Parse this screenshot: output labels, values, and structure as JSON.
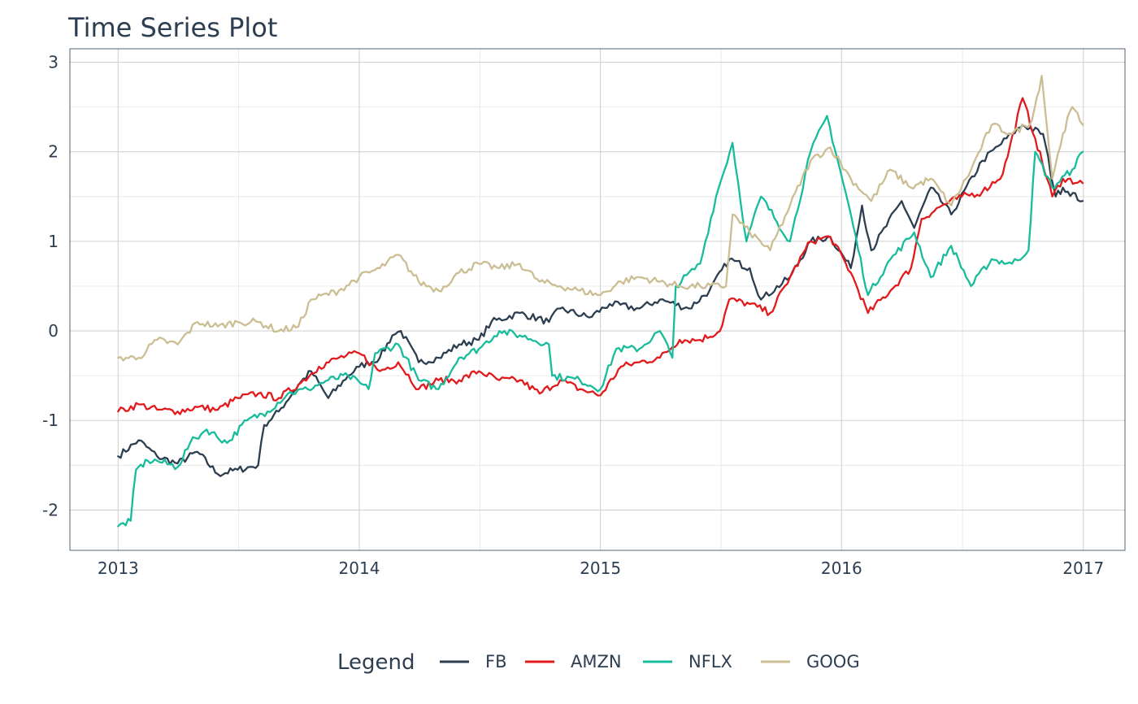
{
  "chart_data": {
    "type": "line",
    "title": "Time Series Plot",
    "xlabel": "",
    "ylabel": "",
    "x_ticks": [
      "2013",
      "2014",
      "2015",
      "2016",
      "2017"
    ],
    "y_ticks": [
      "-2",
      "-1",
      "0",
      "1",
      "2",
      "3"
    ],
    "xlim": [
      "2012-10-20",
      "2017-03-05"
    ],
    "ylim": [
      -2.45,
      3.15
    ],
    "grid": true,
    "legend": {
      "title": "Legend",
      "position": "bottom"
    },
    "series": [
      {
        "name": "FB",
        "color": "#2c3e50",
        "points": [
          [
            "2013-01-01",
            -1.4
          ],
          [
            "2013-02-01",
            -1.22
          ],
          [
            "2013-03-01",
            -1.4
          ],
          [
            "2013-04-01",
            -1.48
          ],
          [
            "2013-05-01",
            -1.35
          ],
          [
            "2013-06-01",
            -1.6
          ],
          [
            "2013-07-01",
            -1.55
          ],
          [
            "2013-08-01",
            -1.5
          ],
          [
            "2013-08-10",
            -1.05
          ],
          [
            "2013-09-01",
            -0.9
          ],
          [
            "2013-10-01",
            -0.6
          ],
          [
            "2013-10-20",
            -0.45
          ],
          [
            "2013-11-15",
            -0.75
          ],
          [
            "2013-12-15",
            -0.5
          ],
          [
            "2014-01-01",
            -0.4
          ],
          [
            "2014-02-01",
            -0.3
          ],
          [
            "2014-02-20",
            -0.05
          ],
          [
            "2014-03-05",
            0.0
          ],
          [
            "2014-04-01",
            -0.35
          ],
          [
            "2014-05-01",
            -0.3
          ],
          [
            "2014-06-01",
            -0.15
          ],
          [
            "2014-07-01",
            -0.1
          ],
          [
            "2014-07-20",
            0.1
          ],
          [
            "2014-09-01",
            0.2
          ],
          [
            "2014-10-15",
            0.1
          ],
          [
            "2014-11-01",
            0.25
          ],
          [
            "2014-12-15",
            0.15
          ],
          [
            "2015-01-15",
            0.3
          ],
          [
            "2015-03-01",
            0.25
          ],
          [
            "2015-04-01",
            0.35
          ],
          [
            "2015-05-15",
            0.25
          ],
          [
            "2015-06-15",
            0.45
          ],
          [
            "2015-07-15",
            0.8
          ],
          [
            "2015-08-15",
            0.7
          ],
          [
            "2015-09-01",
            0.35
          ],
          [
            "2015-10-15",
            0.6
          ],
          [
            "2015-11-15",
            1.0
          ],
          [
            "2015-12-15",
            1.05
          ],
          [
            "2016-01-15",
            0.7
          ],
          [
            "2016-02-01",
            1.4
          ],
          [
            "2016-02-15",
            0.9
          ],
          [
            "2016-04-01",
            1.45
          ],
          [
            "2016-04-20",
            1.15
          ],
          [
            "2016-05-15",
            1.6
          ],
          [
            "2016-06-15",
            1.3
          ],
          [
            "2016-08-01",
            1.9
          ],
          [
            "2016-09-15",
            2.2
          ],
          [
            "2016-10-01",
            2.3
          ],
          [
            "2016-11-01",
            2.2
          ],
          [
            "2016-11-20",
            1.5
          ],
          [
            "2016-12-01",
            1.6
          ],
          [
            "2016-12-31",
            1.45
          ]
        ]
      },
      {
        "name": "AMZN",
        "color": "#e31a1c",
        "points": [
          [
            "2013-01-01",
            -0.9
          ],
          [
            "2013-02-01",
            -0.82
          ],
          [
            "2013-03-01",
            -0.88
          ],
          [
            "2013-04-01",
            -0.9
          ],
          [
            "2013-05-01",
            -0.85
          ],
          [
            "2013-06-01",
            -0.88
          ],
          [
            "2013-07-01",
            -0.75
          ],
          [
            "2013-08-01",
            -0.7
          ],
          [
            "2013-09-01",
            -0.75
          ],
          [
            "2013-10-01",
            -0.6
          ],
          [
            "2013-11-01",
            -0.4
          ],
          [
            "2013-12-01",
            -0.3
          ],
          [
            "2014-01-01",
            -0.25
          ],
          [
            "2014-02-01",
            -0.45
          ],
          [
            "2014-03-01",
            -0.35
          ],
          [
            "2014-04-01",
            -0.65
          ],
          [
            "2014-05-01",
            -0.55
          ],
          [
            "2014-06-01",
            -0.55
          ],
          [
            "2014-07-01",
            -0.45
          ],
          [
            "2014-08-01",
            -0.55
          ],
          [
            "2014-09-01",
            -0.55
          ],
          [
            "2014-10-01",
            -0.7
          ],
          [
            "2014-11-01",
            -0.55
          ],
          [
            "2014-12-01",
            -0.65
          ],
          [
            "2015-01-01",
            -0.72
          ],
          [
            "2015-02-01",
            -0.4
          ],
          [
            "2015-03-01",
            -0.35
          ],
          [
            "2015-04-01",
            -0.3
          ],
          [
            "2015-05-01",
            -0.1
          ],
          [
            "2015-06-01",
            -0.1
          ],
          [
            "2015-07-01",
            0.0
          ],
          [
            "2015-07-15",
            0.35
          ],
          [
            "2015-08-15",
            0.3
          ],
          [
            "2015-09-15",
            0.2
          ],
          [
            "2015-10-15",
            0.6
          ],
          [
            "2015-11-15",
            1.0
          ],
          [
            "2015-12-15",
            1.05
          ],
          [
            "2016-01-15",
            0.65
          ],
          [
            "2016-02-10",
            0.2
          ],
          [
            "2016-03-15",
            0.45
          ],
          [
            "2016-04-15",
            0.7
          ],
          [
            "2016-05-01",
            1.25
          ],
          [
            "2016-06-01",
            1.4
          ],
          [
            "2016-07-01",
            1.5
          ],
          [
            "2016-08-01",
            1.55
          ],
          [
            "2016-09-01",
            1.75
          ],
          [
            "2016-10-01",
            2.6
          ],
          [
            "2016-10-20",
            2.15
          ],
          [
            "2016-11-15",
            1.5
          ],
          [
            "2016-12-01",
            1.7
          ],
          [
            "2016-12-31",
            1.65
          ]
        ]
      },
      {
        "name": "NFLX",
        "color": "#18bc9c",
        "points": [
          [
            "2013-01-01",
            -2.18
          ],
          [
            "2013-01-20",
            -2.12
          ],
          [
            "2013-01-28",
            -1.55
          ],
          [
            "2013-02-15",
            -1.45
          ],
          [
            "2013-03-01",
            -1.45
          ],
          [
            "2013-04-01",
            -1.52
          ],
          [
            "2013-04-20",
            -1.25
          ],
          [
            "2013-05-15",
            -1.1
          ],
          [
            "2013-06-15",
            -1.25
          ],
          [
            "2013-07-15",
            -1.0
          ],
          [
            "2013-08-15",
            -0.9
          ],
          [
            "2013-09-15",
            -0.7
          ],
          [
            "2013-10-15",
            -0.65
          ],
          [
            "2013-11-15",
            -0.55
          ],
          [
            "2013-12-15",
            -0.5
          ],
          [
            "2014-01-15",
            -0.65
          ],
          [
            "2014-01-25",
            -0.25
          ],
          [
            "2014-03-01",
            -0.15
          ],
          [
            "2014-04-01",
            -0.55
          ],
          [
            "2014-05-01",
            -0.65
          ],
          [
            "2014-06-01",
            -0.3
          ],
          [
            "2014-07-01",
            -0.2
          ],
          [
            "2014-08-01",
            0.0
          ],
          [
            "2014-09-01",
            -0.05
          ],
          [
            "2014-10-15",
            -0.15
          ],
          [
            "2014-10-20",
            -0.5
          ],
          [
            "2014-12-01",
            -0.55
          ],
          [
            "2015-01-01",
            -0.65
          ],
          [
            "2015-01-25",
            -0.2
          ],
          [
            "2015-03-01",
            -0.2
          ],
          [
            "2015-04-01",
            0.0
          ],
          [
            "2015-04-20",
            -0.3
          ],
          [
            "2015-04-25",
            0.5
          ],
          [
            "2015-06-01",
            0.75
          ],
          [
            "2015-06-25",
            1.5
          ],
          [
            "2015-07-20",
            2.1
          ],
          [
            "2015-08-10",
            1.0
          ],
          [
            "2015-09-01",
            1.5
          ],
          [
            "2015-10-15",
            1.0
          ],
          [
            "2015-11-15",
            2.0
          ],
          [
            "2015-12-10",
            2.4
          ],
          [
            "2016-01-15",
            1.3
          ],
          [
            "2016-02-10",
            0.4
          ],
          [
            "2016-03-15",
            0.8
          ],
          [
            "2016-04-20",
            1.1
          ],
          [
            "2016-05-15",
            0.6
          ],
          [
            "2016-06-15",
            0.95
          ],
          [
            "2016-07-15",
            0.5
          ],
          [
            "2016-08-15",
            0.8
          ],
          [
            "2016-09-15",
            0.75
          ],
          [
            "2016-10-10",
            0.9
          ],
          [
            "2016-10-20",
            2.0
          ],
          [
            "2016-11-15",
            1.6
          ],
          [
            "2016-12-15",
            1.8
          ],
          [
            "2016-12-31",
            2.0
          ]
        ]
      },
      {
        "name": "GOOG",
        "color": "#ccbe93",
        "points": [
          [
            "2013-01-01",
            -0.3
          ],
          [
            "2013-02-01",
            -0.3
          ],
          [
            "2013-03-01",
            -0.1
          ],
          [
            "2013-04-01",
            -0.15
          ],
          [
            "2013-05-01",
            0.1
          ],
          [
            "2013-06-01",
            0.05
          ],
          [
            "2013-07-01",
            0.1
          ],
          [
            "2013-08-01",
            0.1
          ],
          [
            "2013-09-01",
            0.0
          ],
          [
            "2013-10-01",
            0.05
          ],
          [
            "2013-10-20",
            0.35
          ],
          [
            "2013-12-01",
            0.45
          ],
          [
            "2014-01-01",
            0.6
          ],
          [
            "2014-02-01",
            0.7
          ],
          [
            "2014-03-01",
            0.85
          ],
          [
            "2014-04-01",
            0.55
          ],
          [
            "2014-05-01",
            0.45
          ],
          [
            "2014-06-01",
            0.65
          ],
          [
            "2014-07-01",
            0.75
          ],
          [
            "2014-08-01",
            0.7
          ],
          [
            "2014-09-01",
            0.75
          ],
          [
            "2014-10-01",
            0.55
          ],
          [
            "2014-11-01",
            0.5
          ],
          [
            "2014-12-01",
            0.45
          ],
          [
            "2015-01-01",
            0.4
          ],
          [
            "2015-02-01",
            0.55
          ],
          [
            "2015-03-01",
            0.6
          ],
          [
            "2015-04-01",
            0.55
          ],
          [
            "2015-05-01",
            0.5
          ],
          [
            "2015-06-01",
            0.5
          ],
          [
            "2015-07-10",
            0.5
          ],
          [
            "2015-07-20",
            1.3
          ],
          [
            "2015-08-15",
            1.1
          ],
          [
            "2015-09-15",
            0.9
          ],
          [
            "2015-10-15",
            1.4
          ],
          [
            "2015-11-15",
            1.9
          ],
          [
            "2015-12-15",
            2.05
          ],
          [
            "2016-01-15",
            1.7
          ],
          [
            "2016-02-15",
            1.45
          ],
          [
            "2016-03-15",
            1.8
          ],
          [
            "2016-04-15",
            1.6
          ],
          [
            "2016-05-15",
            1.7
          ],
          [
            "2016-06-15",
            1.4
          ],
          [
            "2016-07-15",
            1.8
          ],
          [
            "2016-08-15",
            2.3
          ],
          [
            "2016-09-15",
            2.2
          ],
          [
            "2016-10-15",
            2.35
          ],
          [
            "2016-10-30",
            2.85
          ],
          [
            "2016-11-15",
            1.7
          ],
          [
            "2016-12-01",
            2.2
          ],
          [
            "2016-12-15",
            2.5
          ],
          [
            "2016-12-31",
            2.3
          ]
        ]
      }
    ]
  }
}
